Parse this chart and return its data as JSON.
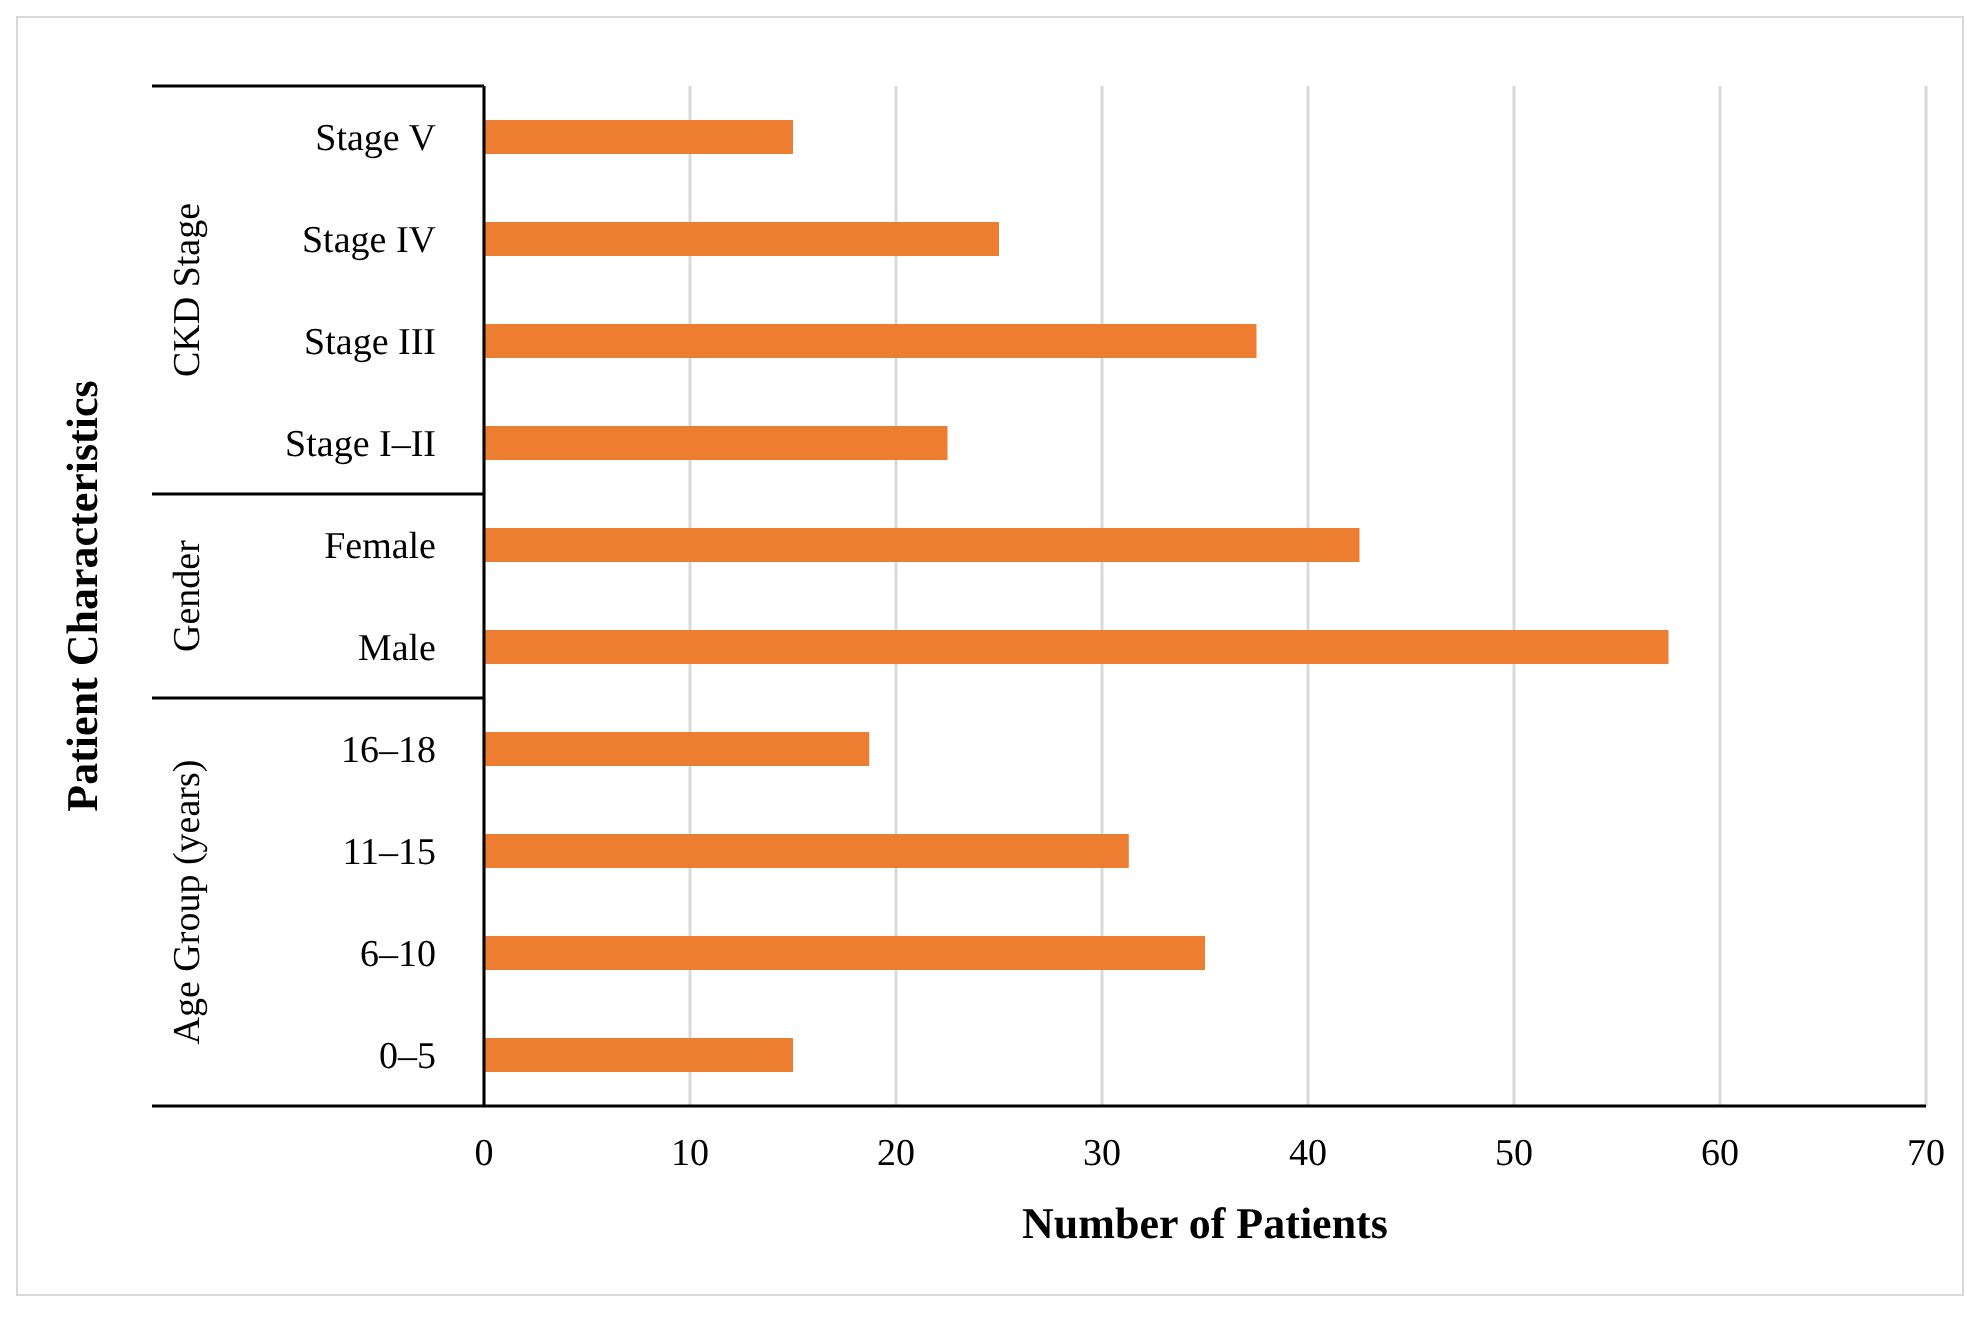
{
  "chart_data": {
    "type": "bar",
    "orientation": "horizontal",
    "xlabel": "Number of Patients",
    "ylabel": "Patient Characteristics",
    "categories": [
      "Stage V",
      "Stage IV",
      "Stage III",
      "Stage I–II",
      "Female",
      "Male",
      "16–18",
      "11–15",
      "6–10",
      "0–5"
    ],
    "values": [
      15,
      25,
      37.5,
      22.5,
      42.5,
      57.5,
      18.7,
      31.3,
      35,
      15
    ],
    "color": "#ed7d31",
    "xlim": [
      0,
      70
    ],
    "xticks": [
      0,
      10,
      20,
      30,
      40,
      50,
      60,
      70
    ],
    "grid": "x",
    "annotations": [
      "CKD Stage",
      "Gender",
      "Age Group (years)"
    ]
  }
}
